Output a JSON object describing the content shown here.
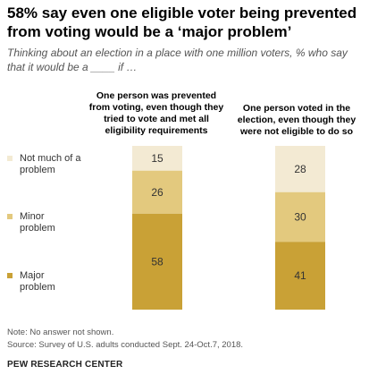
{
  "title": "58% say even one eligible voter being prevented from voting would be a ‘major problem’",
  "subtitle": "Thinking about an election in a place with one million voters, % who say that it would be a ____ if …",
  "legend": [
    {
      "label": "Not much of a problem",
      "color": "#f3ead3"
    },
    {
      "label": "Minor problem",
      "color": "#e3c97e"
    },
    {
      "label": "Major problem",
      "color": "#c9a136"
    }
  ],
  "chart_data": {
    "type": "bar",
    "stacked": true,
    "categories": [
      "One person was prevented from voting, even though they tried to vote and met all eligibility requirements",
      "One person voted in the election, even though they were not eligible to do so"
    ],
    "series": [
      {
        "name": "Not much of a problem",
        "values": [
          15,
          28
        ]
      },
      {
        "name": "Minor problem",
        "values": [
          26,
          30
        ]
      },
      {
        "name": "Major problem",
        "values": [
          58,
          41
        ]
      }
    ],
    "ylim": [
      0,
      100
    ]
  },
  "notes": {
    "note": "Note: No answer not shown.",
    "source": "Source: Survey of U.S. adults conducted Sept. 24-Oct.7, 2018.",
    "org": "PEW RESEARCH CENTER"
  }
}
